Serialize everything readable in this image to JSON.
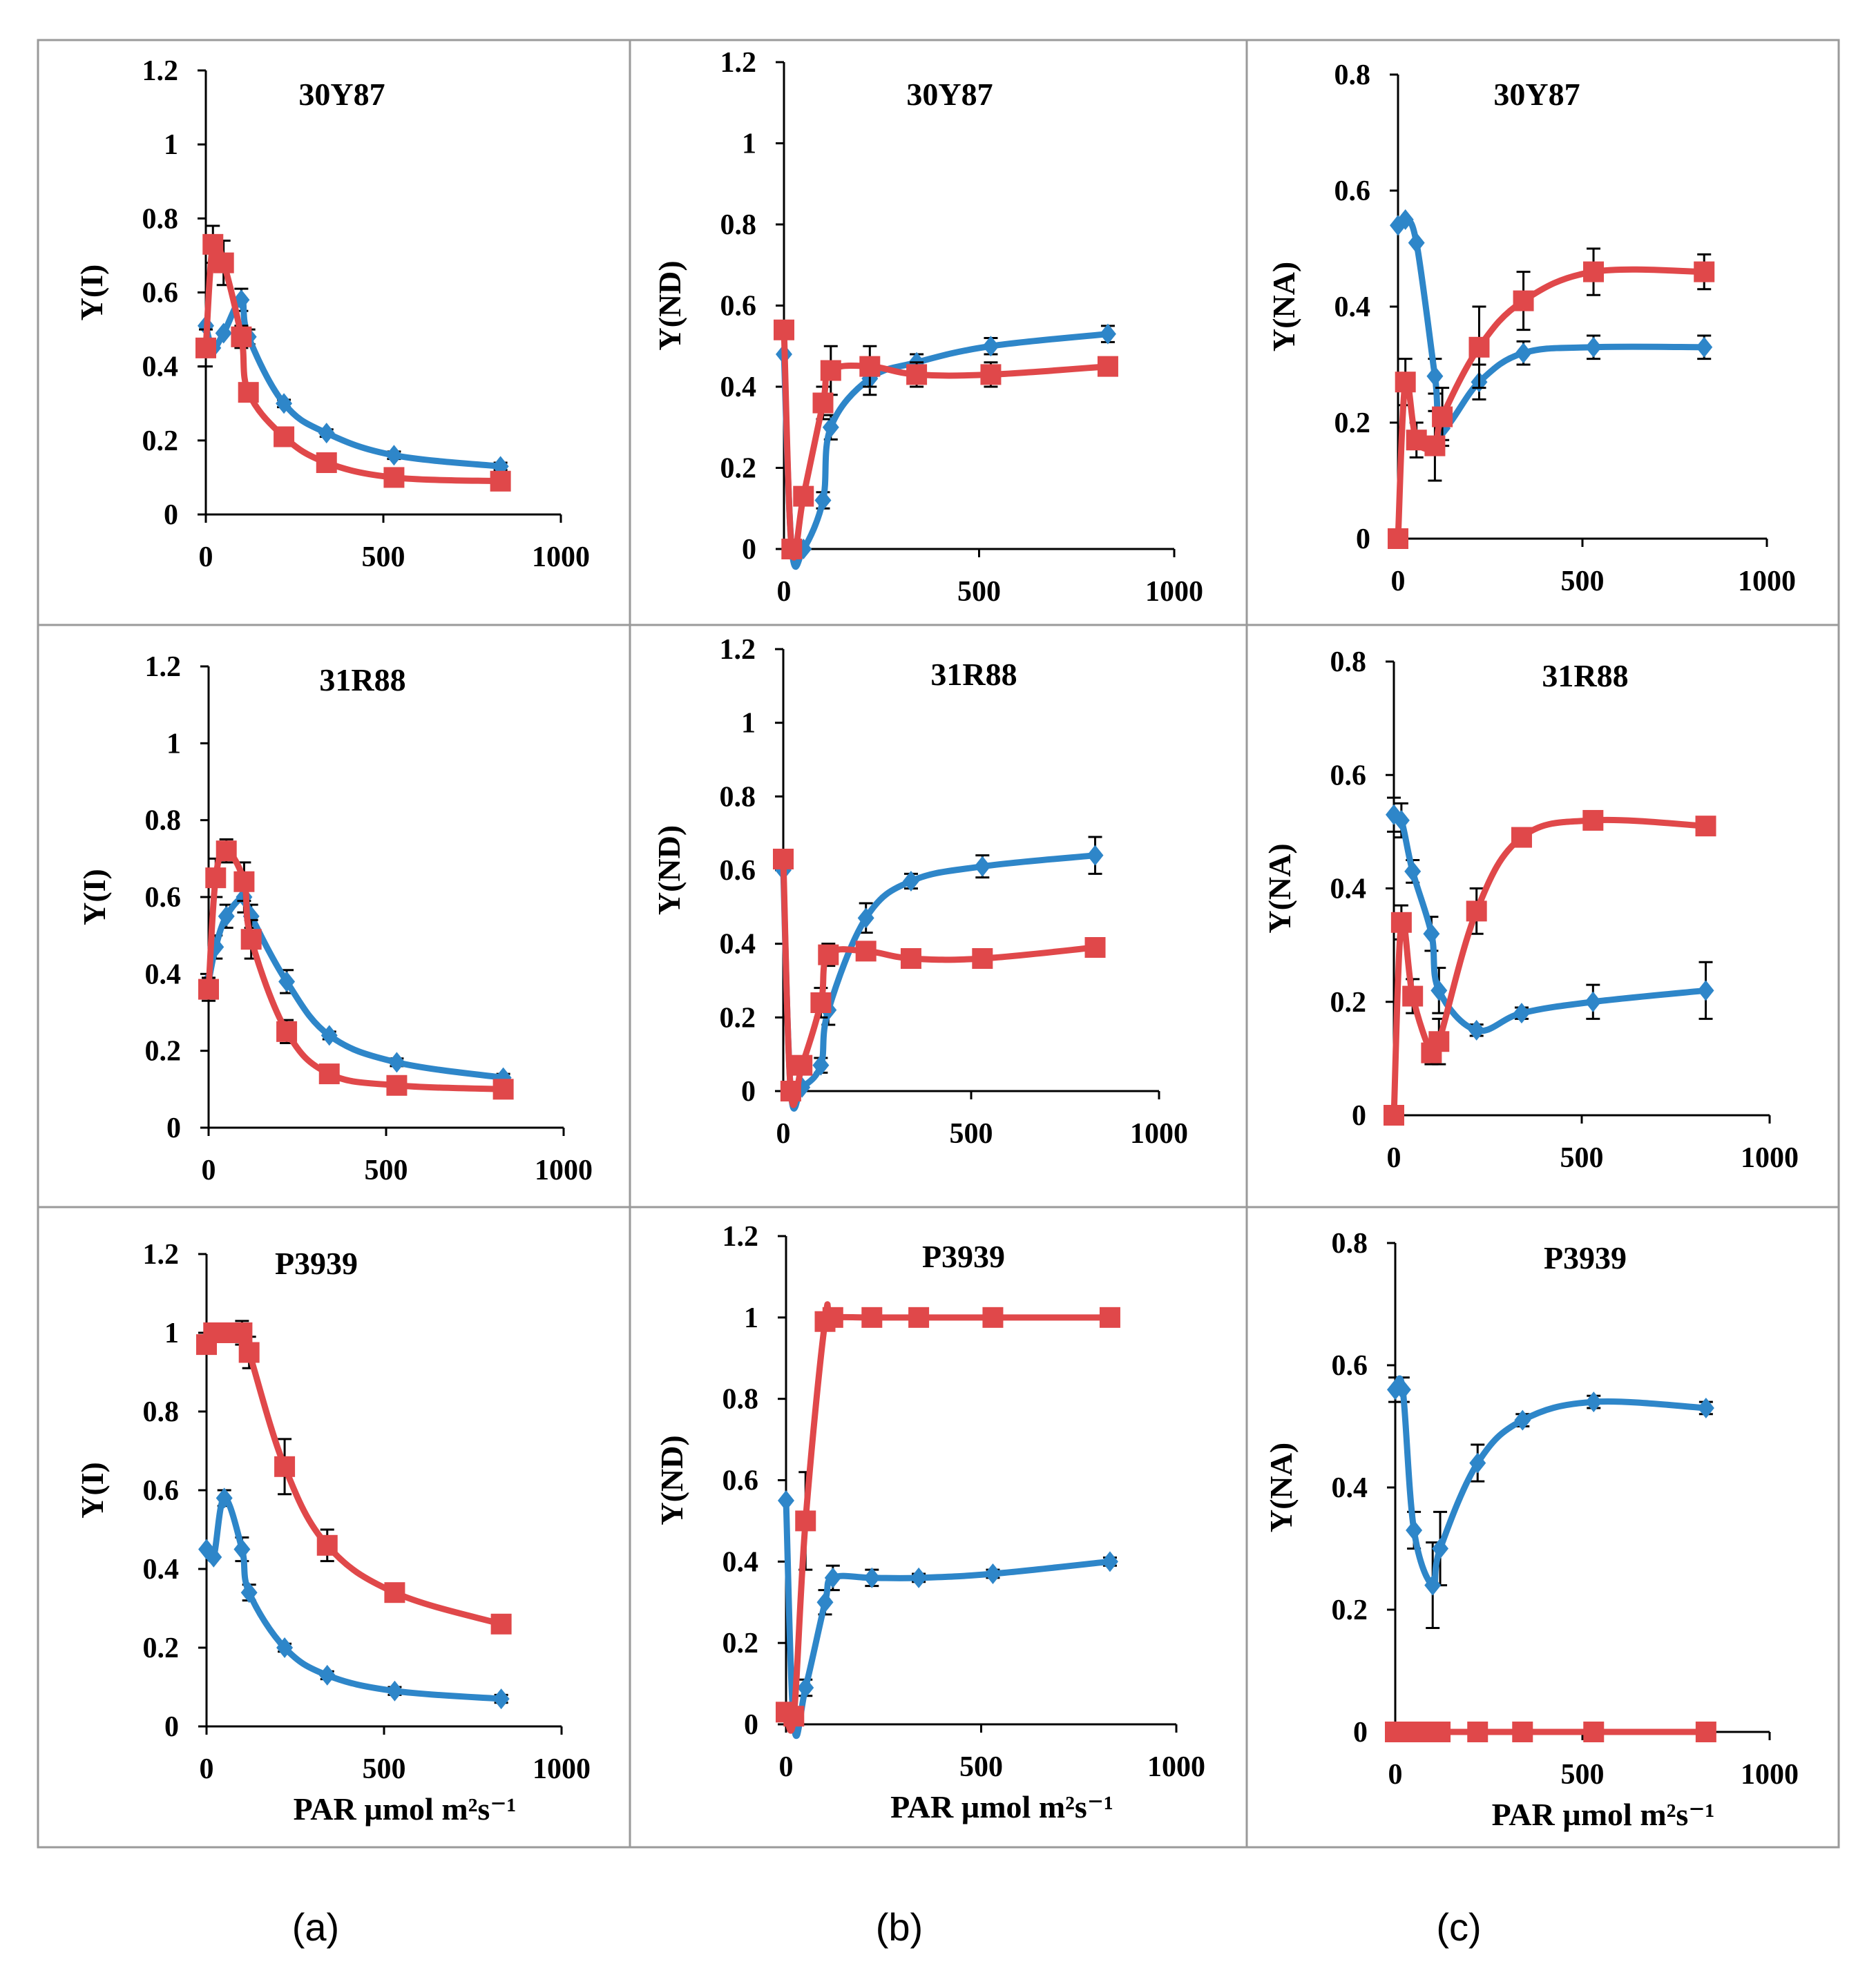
{
  "colors": {
    "blue": "#2E86C9",
    "red": "#E0484A",
    "frame": "#9a9a9a",
    "axis": "#000000"
  },
  "panel_labels": [
    "(a)",
    "(b)",
    "(c)"
  ],
  "xlabel": "PAR µmol m²s⁻¹",
  "chart_data": [
    {
      "type": "line",
      "title": "30Y87",
      "ylabel": "Y(I)",
      "xlabel": "",
      "xlim": [
        0,
        1000
      ],
      "xticks": [
        "0",
        "500",
        "1000"
      ],
      "ylim": [
        0,
        1.2
      ],
      "yticks": [
        "0",
        "0.2",
        "0.4",
        "0.6",
        "0.8",
        "1",
        "1.2"
      ],
      "series": [
        {
          "name": "blue",
          "marker": "diamond",
          "x": [
            0,
            20,
            50,
            100,
            120,
            220,
            340,
            530,
            830
          ],
          "y": [
            0.51,
            0.45,
            0.49,
            0.58,
            0.48,
            0.3,
            0.22,
            0.16,
            0.13
          ],
          "err": [
            0,
            0,
            0,
            0.03,
            0.02,
            0.01,
            0.01,
            0.01,
            0.01
          ]
        },
        {
          "name": "red",
          "marker": "square",
          "x": [
            0,
            20,
            50,
            100,
            120,
            220,
            340,
            530,
            830
          ],
          "y": [
            0.45,
            0.73,
            0.68,
            0.48,
            0.33,
            0.21,
            0.14,
            0.1,
            0.09
          ],
          "err": [
            0.05,
            0.05,
            0.06,
            0.03,
            0.02,
            0.01,
            0.01,
            0.01,
            0.01
          ]
        }
      ]
    },
    {
      "type": "line",
      "title": "30Y87",
      "ylabel": "Y(ND)",
      "xlabel": "",
      "xlim": [
        0,
        1000
      ],
      "xticks": [
        "0",
        "500",
        "1000"
      ],
      "ylim": [
        0,
        1.2
      ],
      "yticks": [
        "0",
        "0.2",
        "0.4",
        "0.6",
        "0.8",
        "1",
        "1.2"
      ],
      "series": [
        {
          "name": "blue",
          "marker": "diamond",
          "x": [
            0,
            20,
            50,
            100,
            120,
            220,
            340,
            530,
            830
          ],
          "y": [
            0.48,
            0.0,
            0.0,
            0.12,
            0.3,
            0.42,
            0.46,
            0.5,
            0.53
          ],
          "err": [
            0,
            0,
            0,
            0.02,
            0.03,
            0.04,
            0.02,
            0.02,
            0.02
          ]
        },
        {
          "name": "red",
          "marker": "square",
          "x": [
            0,
            20,
            50,
            100,
            120,
            220,
            340,
            530,
            830
          ],
          "y": [
            0.54,
            0.0,
            0.13,
            0.36,
            0.44,
            0.45,
            0.43,
            0.43,
            0.45
          ],
          "err": [
            0,
            0,
            0.02,
            0.04,
            0.06,
            0.05,
            0.03,
            0.03,
            0.01
          ]
        }
      ]
    },
    {
      "type": "line",
      "title": "30Y87",
      "ylabel": "Y(NA)",
      "xlabel": "",
      "xlim": [
        0,
        1000
      ],
      "xticks": [
        "0",
        "500",
        "1000"
      ],
      "ylim": [
        0,
        0.8
      ],
      "yticks": [
        "0",
        "0.2",
        "0.4",
        "0.6",
        "0.8"
      ],
      "series": [
        {
          "name": "blue",
          "marker": "diamond",
          "x": [
            0,
            20,
            50,
            100,
            120,
            220,
            340,
            530,
            830
          ],
          "y": [
            0.54,
            0.55,
            0.51,
            0.28,
            0.19,
            0.27,
            0.32,
            0.33,
            0.33
          ],
          "err": [
            0,
            0,
            0,
            0.03,
            0.02,
            0.03,
            0.02,
            0.02,
            0.02
          ]
        },
        {
          "name": "red",
          "marker": "square",
          "x": [
            0,
            20,
            50,
            100,
            120,
            220,
            340,
            530,
            830
          ],
          "y": [
            0.0,
            0.27,
            0.17,
            0.16,
            0.21,
            0.33,
            0.41,
            0.46,
            0.46
          ],
          "err": [
            0,
            0.04,
            0.03,
            0.06,
            0.05,
            0.07,
            0.05,
            0.04,
            0.03
          ]
        }
      ]
    },
    {
      "type": "line",
      "title": "31R88",
      "ylabel": "Y(I)",
      "xlabel": "",
      "xlim": [
        0,
        1000
      ],
      "xticks": [
        "0",
        "500",
        "1000"
      ],
      "ylim": [
        0,
        1.2
      ],
      "yticks": [
        "0",
        "0.2",
        "0.4",
        "0.6",
        "0.8",
        "1",
        "1.2"
      ],
      "series": [
        {
          "name": "blue",
          "marker": "diamond",
          "x": [
            0,
            20,
            50,
            100,
            120,
            220,
            340,
            530,
            830
          ],
          "y": [
            0.38,
            0.47,
            0.55,
            0.6,
            0.55,
            0.38,
            0.24,
            0.17,
            0.13
          ],
          "err": [
            0,
            0.03,
            0.03,
            0.04,
            0.03,
            0.03,
            0.01,
            0.01,
            0.01
          ]
        },
        {
          "name": "red",
          "marker": "square",
          "x": [
            0,
            20,
            50,
            100,
            120,
            220,
            340,
            530,
            830
          ],
          "y": [
            0.36,
            0.65,
            0.72,
            0.64,
            0.49,
            0.25,
            0.14,
            0.11,
            0.1
          ],
          "err": [
            0.03,
            0.05,
            0.03,
            0.05,
            0.05,
            0.03,
            0.01,
            0.01,
            0.01
          ]
        }
      ]
    },
    {
      "type": "line",
      "title": "31R88",
      "ylabel": "Y(ND)",
      "xlabel": "",
      "xlim": [
        0,
        1000
      ],
      "xticks": [
        "0",
        "500",
        "1000"
      ],
      "ylim": [
        0,
        1.2
      ],
      "yticks": [
        "0",
        "0.2",
        "0.4",
        "0.6",
        "0.8",
        "1",
        "1.2"
      ],
      "series": [
        {
          "name": "blue",
          "marker": "diamond",
          "x": [
            0,
            20,
            50,
            100,
            120,
            220,
            340,
            530,
            830
          ],
          "y": [
            0.6,
            0.0,
            0.01,
            0.07,
            0.22,
            0.47,
            0.57,
            0.61,
            0.64
          ],
          "err": [
            0,
            0,
            0,
            0.02,
            0.04,
            0.04,
            0.02,
            0.03,
            0.05
          ]
        },
        {
          "name": "red",
          "marker": "square",
          "x": [
            0,
            20,
            50,
            100,
            120,
            220,
            340,
            530,
            830
          ],
          "y": [
            0.63,
            0.0,
            0.07,
            0.24,
            0.37,
            0.38,
            0.36,
            0.36,
            0.39
          ],
          "err": [
            0,
            0,
            0.02,
            0.04,
            0.03,
            0.02,
            0.01,
            0.01,
            0.02
          ]
        }
      ]
    },
    {
      "type": "line",
      "title": "31R88",
      "ylabel": "Y(NA)",
      "xlabel": "",
      "xlim": [
        0,
        1000
      ],
      "xticks": [
        "0",
        "500",
        "1000"
      ],
      "ylim": [
        0,
        0.8
      ],
      "yticks": [
        "0",
        "0.2",
        "0.4",
        "0.6",
        "0.8"
      ],
      "series": [
        {
          "name": "blue",
          "marker": "diamond",
          "x": [
            0,
            20,
            50,
            100,
            120,
            220,
            340,
            530,
            830
          ],
          "y": [
            0.53,
            0.52,
            0.43,
            0.32,
            0.22,
            0.15,
            0.18,
            0.2,
            0.22
          ],
          "err": [
            0.03,
            0.03,
            0.02,
            0.03,
            0.04,
            0.01,
            0.01,
            0.03,
            0.05
          ]
        },
        {
          "name": "red",
          "marker": "square",
          "x": [
            0,
            20,
            50,
            100,
            120,
            220,
            340,
            530,
            830
          ],
          "y": [
            0.0,
            0.34,
            0.21,
            0.11,
            0.13,
            0.36,
            0.49,
            0.52,
            0.51
          ],
          "err": [
            0,
            0.03,
            0.03,
            0.02,
            0.04,
            0.04,
            0.01,
            0.01,
            0.01
          ]
        }
      ]
    },
    {
      "type": "line",
      "title": "P3939",
      "ylabel": "Y(I)",
      "xlabel": "PAR µmol m²s⁻¹",
      "xlim": [
        0,
        1000
      ],
      "xticks": [
        "0",
        "500",
        "1000"
      ],
      "ylim": [
        0,
        1.2
      ],
      "yticks": [
        "0",
        "0.2",
        "0.4",
        "0.6",
        "0.8",
        "1",
        "1.2"
      ],
      "series": [
        {
          "name": "blue",
          "marker": "diamond",
          "x": [
            0,
            20,
            50,
            100,
            120,
            220,
            340,
            530,
            830
          ],
          "y": [
            0.45,
            0.43,
            0.58,
            0.45,
            0.34,
            0.2,
            0.13,
            0.09,
            0.07
          ],
          "err": [
            0,
            0,
            0.02,
            0.03,
            0.02,
            0.01,
            0.01,
            0.01,
            0.01
          ]
        },
        {
          "name": "red",
          "marker": "square",
          "x": [
            0,
            20,
            50,
            100,
            120,
            220,
            340,
            530,
            830
          ],
          "y": [
            0.97,
            1.0,
            1.0,
            1.0,
            0.95,
            0.66,
            0.46,
            0.34,
            0.26
          ],
          "err": [
            0.02,
            0.02,
            0.02,
            0.03,
            0.04,
            0.07,
            0.04,
            0.01,
            0.01
          ]
        }
      ]
    },
    {
      "type": "line",
      "title": "P3939",
      "ylabel": "Y(ND)",
      "xlabel": "PAR µmol m²s⁻¹",
      "xlim": [
        0,
        1000
      ],
      "xticks": [
        "0",
        "500",
        "1000"
      ],
      "ylim": [
        0,
        1.2
      ],
      "yticks": [
        "0",
        "0.2",
        "0.4",
        "0.6",
        "0.8",
        "1",
        "1.2"
      ],
      "series": [
        {
          "name": "blue",
          "marker": "diamond",
          "x": [
            0,
            20,
            50,
            100,
            120,
            220,
            340,
            530,
            830
          ],
          "y": [
            0.55,
            0.0,
            0.09,
            0.3,
            0.36,
            0.36,
            0.36,
            0.37,
            0.4
          ],
          "err": [
            0,
            0,
            0.02,
            0.03,
            0.03,
            0.02,
            0.01,
            0.01,
            0.01
          ]
        },
        {
          "name": "red",
          "marker": "square",
          "x": [
            0,
            20,
            50,
            100,
            120,
            220,
            340,
            530,
            830
          ],
          "y": [
            0.03,
            0.02,
            0.5,
            0.99,
            1.0,
            1.0,
            1.0,
            1.0,
            1.0
          ],
          "err": [
            0,
            0,
            0.12,
            0.01,
            0.01,
            0,
            0,
            0,
            0
          ]
        }
      ]
    },
    {
      "type": "line",
      "title": "P3939",
      "ylabel": "Y(NA)",
      "xlabel": "PAR µmol m²s⁻¹",
      "xlim": [
        0,
        1000
      ],
      "xticks": [
        "0",
        "500",
        "1000"
      ],
      "ylim": [
        0,
        0.8
      ],
      "yticks": [
        "0",
        "0.2",
        "0.4",
        "0.6",
        "0.8"
      ],
      "series": [
        {
          "name": "blue",
          "marker": "diamond",
          "x": [
            0,
            20,
            50,
            100,
            120,
            220,
            340,
            530,
            830
          ],
          "y": [
            0.56,
            0.56,
            0.33,
            0.24,
            0.3,
            0.44,
            0.51,
            0.54,
            0.53
          ],
          "err": [
            0.02,
            0.02,
            0.03,
            0.07,
            0.06,
            0.03,
            0.01,
            0.01,
            0.01
          ]
        },
        {
          "name": "red",
          "marker": "square",
          "x": [
            0,
            20,
            50,
            100,
            120,
            220,
            340,
            530,
            830
          ],
          "y": [
            0.0,
            0.0,
            0.0,
            0.0,
            0.0,
            0.0,
            0.0,
            0.0,
            0.0
          ],
          "err": [
            0,
            0,
            0,
            0,
            0,
            0,
            0,
            0,
            0
          ]
        }
      ]
    }
  ]
}
